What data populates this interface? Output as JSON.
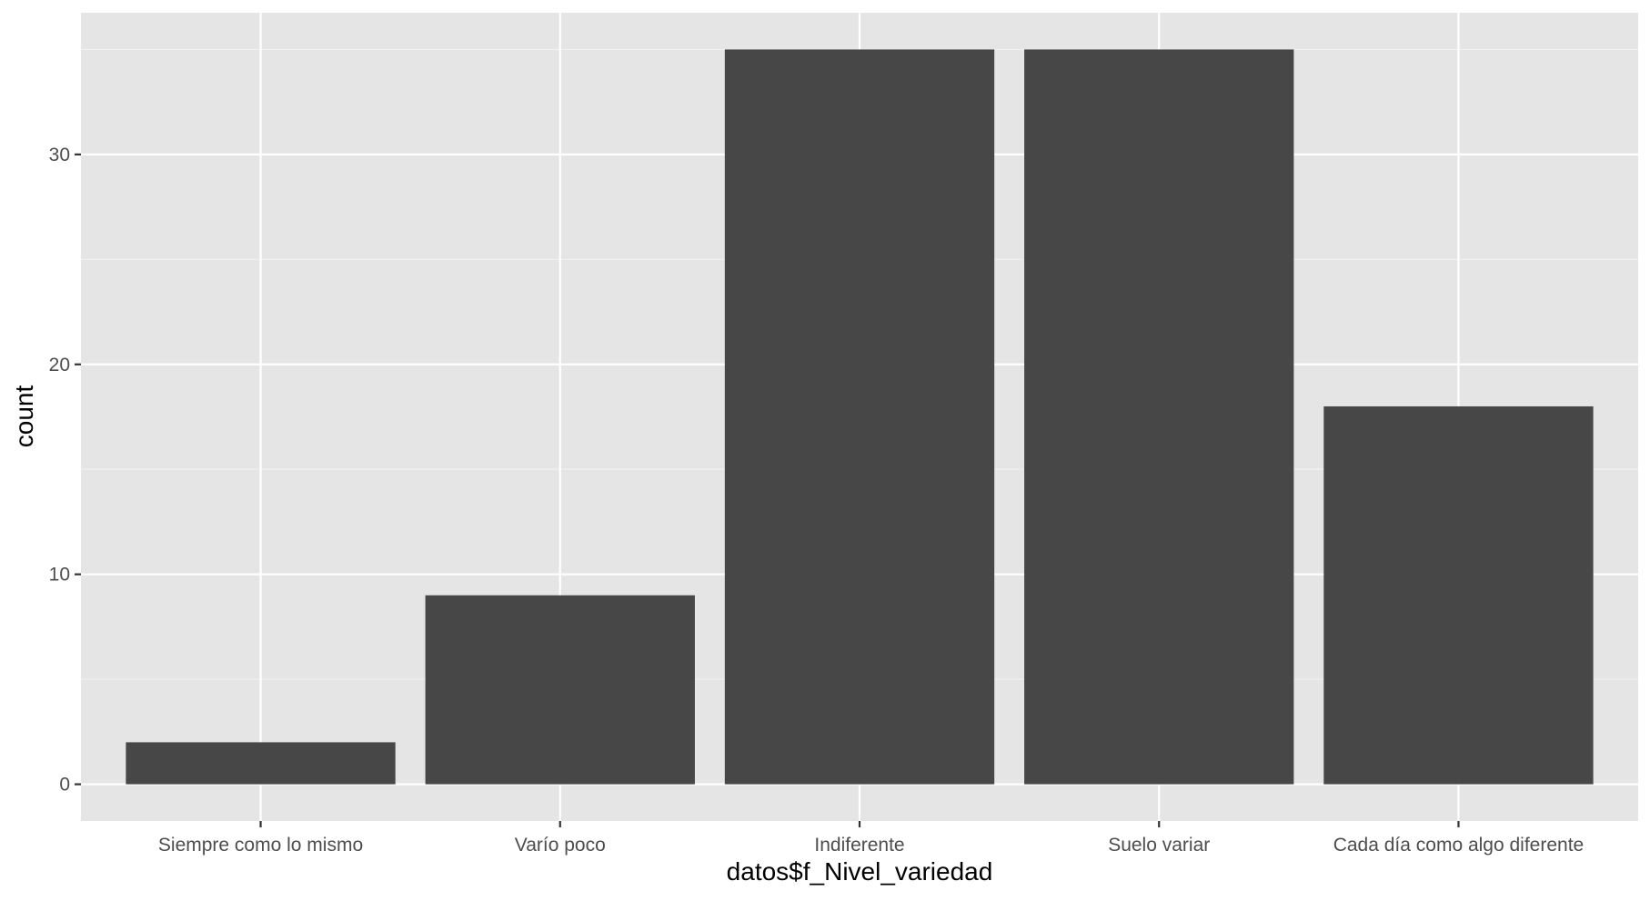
{
  "chart_data": {
    "type": "bar",
    "categories": [
      "Siempre como lo mismo",
      "Varío poco",
      "Indiferente",
      "Suelo variar",
      "Cada día como algo diferente"
    ],
    "values": [
      2,
      9,
      35,
      35,
      18
    ],
    "title": "",
    "xlabel": "datos$f_Nivel_variedad",
    "ylabel": "count",
    "ylim": [
      -1.75,
      36.75
    ],
    "yticks": [
      0,
      10,
      20,
      30
    ],
    "ytick_labels": [
      "0",
      "10",
      "20",
      "30"
    ],
    "grid": true,
    "legend": "none",
    "colors": {
      "panel_background": "#e5e5e5",
      "grid_major": "#ffffff",
      "grid_minor": "#f2f2f2",
      "bar_fill": "#474747",
      "tick_text": "#4d4d4d",
      "tick_mark": "#333333",
      "axis_title": "#000000"
    }
  }
}
